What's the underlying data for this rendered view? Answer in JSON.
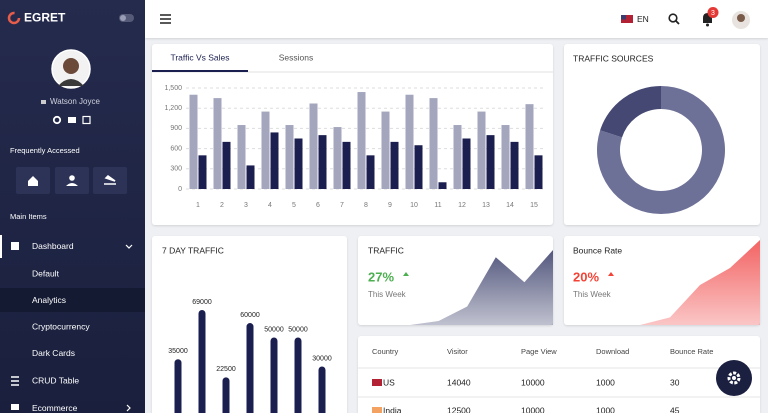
{
  "sidebar": {
    "brand": "EGRET",
    "user": "Watson Joyce",
    "frequently_accessed": "Frequently Accessed",
    "main_items": "Main Items",
    "menu": [
      {
        "label": "Dashboard",
        "children": [
          "Default",
          "Analytics",
          "Cryptocurrency",
          "Dark Cards"
        ]
      },
      {
        "label": "CRUD Table"
      },
      {
        "label": "Ecommerce"
      }
    ]
  },
  "topbar": {
    "language": "EN",
    "notifications": 3
  },
  "chart_data": [
    {
      "type": "bar",
      "tabs": [
        "Traffic Vs Sales",
        "Sessions"
      ],
      "categories": [
        "1",
        "2",
        "3",
        "4",
        "5",
        "6",
        "7",
        "8",
        "9",
        "10",
        "11",
        "12",
        "13",
        "14",
        "15"
      ],
      "series": [
        {
          "color": "#a3a6bd",
          "values": [
            1400,
            1350,
            950,
            1150,
            950,
            1270,
            920,
            1440,
            1150,
            1400,
            1350,
            950,
            1150,
            950,
            1260
          ]
        },
        {
          "color": "#1b1f4f",
          "values": [
            500,
            700,
            350,
            840,
            750,
            800,
            700,
            500,
            700,
            650,
            100,
            750,
            800,
            700,
            500
          ]
        }
      ],
      "ylim": [
        0,
        1500
      ],
      "yticks": [
        0,
        300,
        600,
        900,
        {
          "value": 1200,
          "label": "1,200"
        },
        {
          "value": 1500,
          "label": "1,500"
        }
      ],
      "grid": true
    },
    {
      "type": "pie",
      "title": "TRAFFIC SOURCES",
      "donut": true,
      "values": [
        80,
        20
      ],
      "colors": [
        "#6d7197",
        "#444872"
      ]
    },
    {
      "type": "bar",
      "title": "7 DAY TRAFFIC",
      "values": [
        35000,
        69000,
        22500,
        60000,
        50000,
        50000,
        30000
      ],
      "color": "#1b1f4f",
      "data_labels": true
    },
    {
      "type": "area",
      "title": "TRAFFIC",
      "kpi": "27%",
      "kpi_note": "This Week",
      "kpi_color": "#4caf50",
      "values": [
        0,
        5,
        23,
        84,
        53,
        93
      ],
      "color": "#4a4e76"
    },
    {
      "type": "area",
      "title": "Bounce Rate",
      "kpi": "20%",
      "kpi_note": "This Week",
      "kpi_color": "#f44336",
      "values": [
        0,
        9,
        47,
        67,
        100
      ],
      "color": "#f25b5b"
    }
  ],
  "table": {
    "headers": [
      "Country",
      "Visitor",
      "Page View",
      "Download",
      "Bounce Rate"
    ],
    "rows": [
      [
        "US",
        14040,
        10000,
        1000,
        30
      ],
      [
        "India",
        12500,
        10000,
        1000,
        45
      ]
    ]
  }
}
